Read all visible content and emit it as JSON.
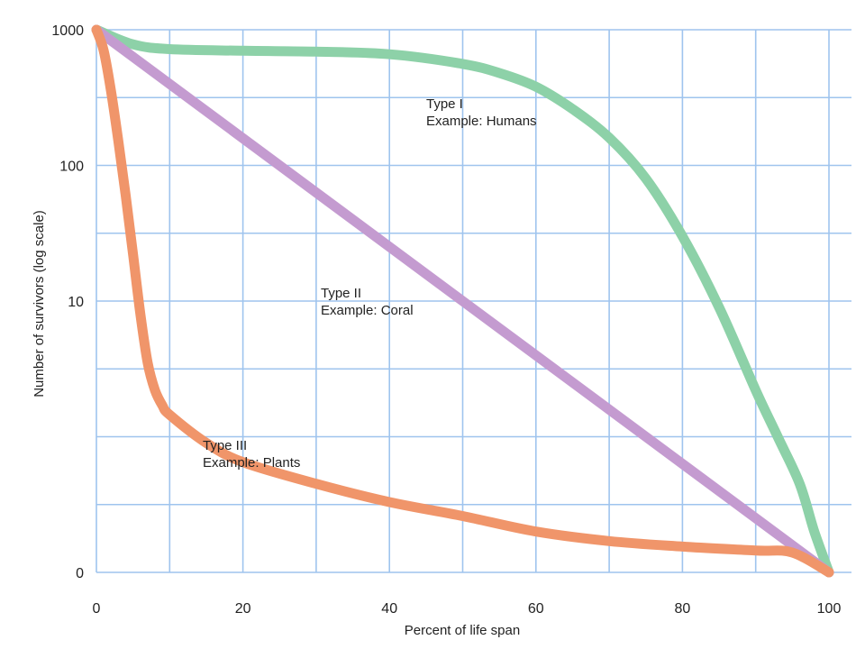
{
  "chart_data": {
    "type": "line",
    "title": "",
    "xlabel": "Percent of life span",
    "ylabel": "Number of survivors (log scale)",
    "xlim": [
      0,
      100
    ],
    "y_scale": "log",
    "y_ticks": [
      1000,
      100,
      10,
      0
    ],
    "x_ticks": [
      0,
      20,
      40,
      60,
      80,
      100
    ],
    "grid": true,
    "grid_color": "#9fc4ee",
    "background": "#ffffff",
    "series": [
      {
        "name": "Type I",
        "annotation": [
          "Type I",
          "Example: Humans"
        ],
        "color": "#8dd1a8",
        "x": [
          0,
          5,
          10,
          20,
          30,
          40,
          50,
          55,
          60,
          65,
          70,
          75,
          80,
          85,
          90,
          93,
          96,
          98,
          100
        ],
        "y": [
          1000,
          780,
          720,
          700,
          690,
          660,
          560,
          480,
          380,
          260,
          160,
          80,
          30,
          9,
          2.2,
          1,
          0.45,
          0.2,
          0.1
        ]
      },
      {
        "name": "Type II",
        "annotation": [
          "Type II",
          "Example: Coral"
        ],
        "color": "#c49bd0",
        "x": [
          0,
          100
        ],
        "y": [
          1000,
          0.1
        ]
      },
      {
        "name": "Type III",
        "annotation": [
          "Type III",
          "Example: Plants"
        ],
        "color": "#f0956a",
        "x": [
          0,
          1,
          2,
          3,
          4,
          5,
          6,
          7,
          8,
          9,
          10,
          15,
          20,
          30,
          40,
          50,
          60,
          70,
          80,
          90,
          95,
          100
        ],
        "y": [
          1000,
          700,
          350,
          150,
          60,
          22,
          8,
          3.5,
          2.2,
          1.7,
          1.45,
          0.9,
          0.65,
          0.45,
          0.33,
          0.26,
          0.2,
          0.17,
          0.155,
          0.145,
          0.14,
          0.1
        ]
      }
    ]
  }
}
